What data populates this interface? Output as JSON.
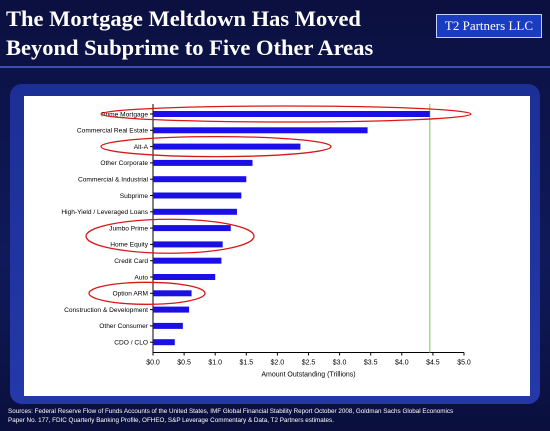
{
  "slide": {
    "title_line1": "The Mortgage Meltdown Has Moved",
    "title_line2": "Beyond Subprime to Five Other Areas",
    "brand": "T2 Partners LLC",
    "sources_line1": "Sources: Federal Reserve Flow of Funds Accounts of the United States, IMF Global Financial Stability Report October 2008, Goldman Sachs Global Economics",
    "sources_line2": "Paper No. 177, FDIC Quarterly Banking Profile, OFHEO, S&P Leverage Commentary & Data, T2 Partners estimates."
  },
  "colors": {
    "bar": "#1a10e6",
    "highlight_ring": "#d91818",
    "reference_line": "#8fd16a",
    "text": "#000000"
  },
  "chart_data": {
    "type": "bar",
    "orientation": "horizontal",
    "categories": [
      "Prime Mortgage",
      "Commercial Real Estate",
      "Alt-A",
      "Other Corporate",
      "Commercial & Industrial",
      "Subprime",
      "High-Yield / Leveraged Loans",
      "Jumbo Prime",
      "Home Equity",
      "Credit Card",
      "Auto",
      "Option ARM",
      "Construction & Development",
      "Other Consumer",
      "CDO / CLO"
    ],
    "values": [
      4.45,
      3.45,
      2.37,
      1.6,
      1.5,
      1.42,
      1.35,
      1.25,
      1.12,
      1.1,
      1.0,
      0.62,
      0.58,
      0.48,
      0.35
    ],
    "highlighted": [
      "Prime Mortgage",
      "Alt-A",
      "Jumbo Prime",
      "Home Equity",
      "Option ARM"
    ],
    "reference_line_x": 4.45,
    "xlabel": "Amount Outstanding (Trillions)",
    "xticks": [
      "$0.0",
      "$0.5",
      "$1.0",
      "$1.5",
      "$2.0",
      "$2.5",
      "$3.0",
      "$3.5",
      "$4.0",
      "$4.5",
      "$5.0"
    ],
    "xlim": [
      0,
      5
    ],
    "grid": false
  }
}
